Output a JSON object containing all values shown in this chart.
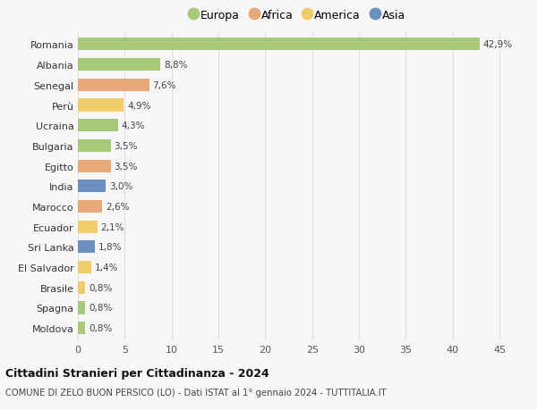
{
  "countries": [
    "Romania",
    "Albania",
    "Senegal",
    "Perù",
    "Ucraina",
    "Bulgaria",
    "Egitto",
    "India",
    "Marocco",
    "Ecuador",
    "Sri Lanka",
    "El Salvador",
    "Brasile",
    "Spagna",
    "Moldova"
  ],
  "values": [
    42.9,
    8.8,
    7.6,
    4.9,
    4.3,
    3.5,
    3.5,
    3.0,
    2.6,
    2.1,
    1.8,
    1.4,
    0.8,
    0.8,
    0.8
  ],
  "labels": [
    "42,9%",
    "8,8%",
    "7,6%",
    "4,9%",
    "4,3%",
    "3,5%",
    "3,5%",
    "3,0%",
    "2,6%",
    "2,1%",
    "1,8%",
    "1,4%",
    "0,8%",
    "0,8%",
    "0,8%"
  ],
  "continents": [
    "Europa",
    "Europa",
    "Africa",
    "America",
    "Europa",
    "Europa",
    "Africa",
    "Asia",
    "Africa",
    "America",
    "Asia",
    "America",
    "America",
    "Europa",
    "Europa"
  ],
  "colors": {
    "Europa": "#a8c87a",
    "Africa": "#e8a87a",
    "America": "#f0cc6a",
    "Asia": "#6a8fc0"
  },
  "legend_order": [
    "Europa",
    "Africa",
    "America",
    "Asia"
  ],
  "title": "Cittadini Stranieri per Cittadinanza - 2024",
  "subtitle": "COMUNE DI ZELO BUON PERSICO (LO) - Dati ISTAT al 1° gennaio 2024 - TUTTITALIA.IT",
  "xlim": [
    0,
    47
  ],
  "xticks": [
    0,
    5,
    10,
    15,
    20,
    25,
    30,
    35,
    40,
    45
  ],
  "background_color": "#f7f7f7",
  "grid_color": "#e0e0e0",
  "bar_height": 0.62
}
